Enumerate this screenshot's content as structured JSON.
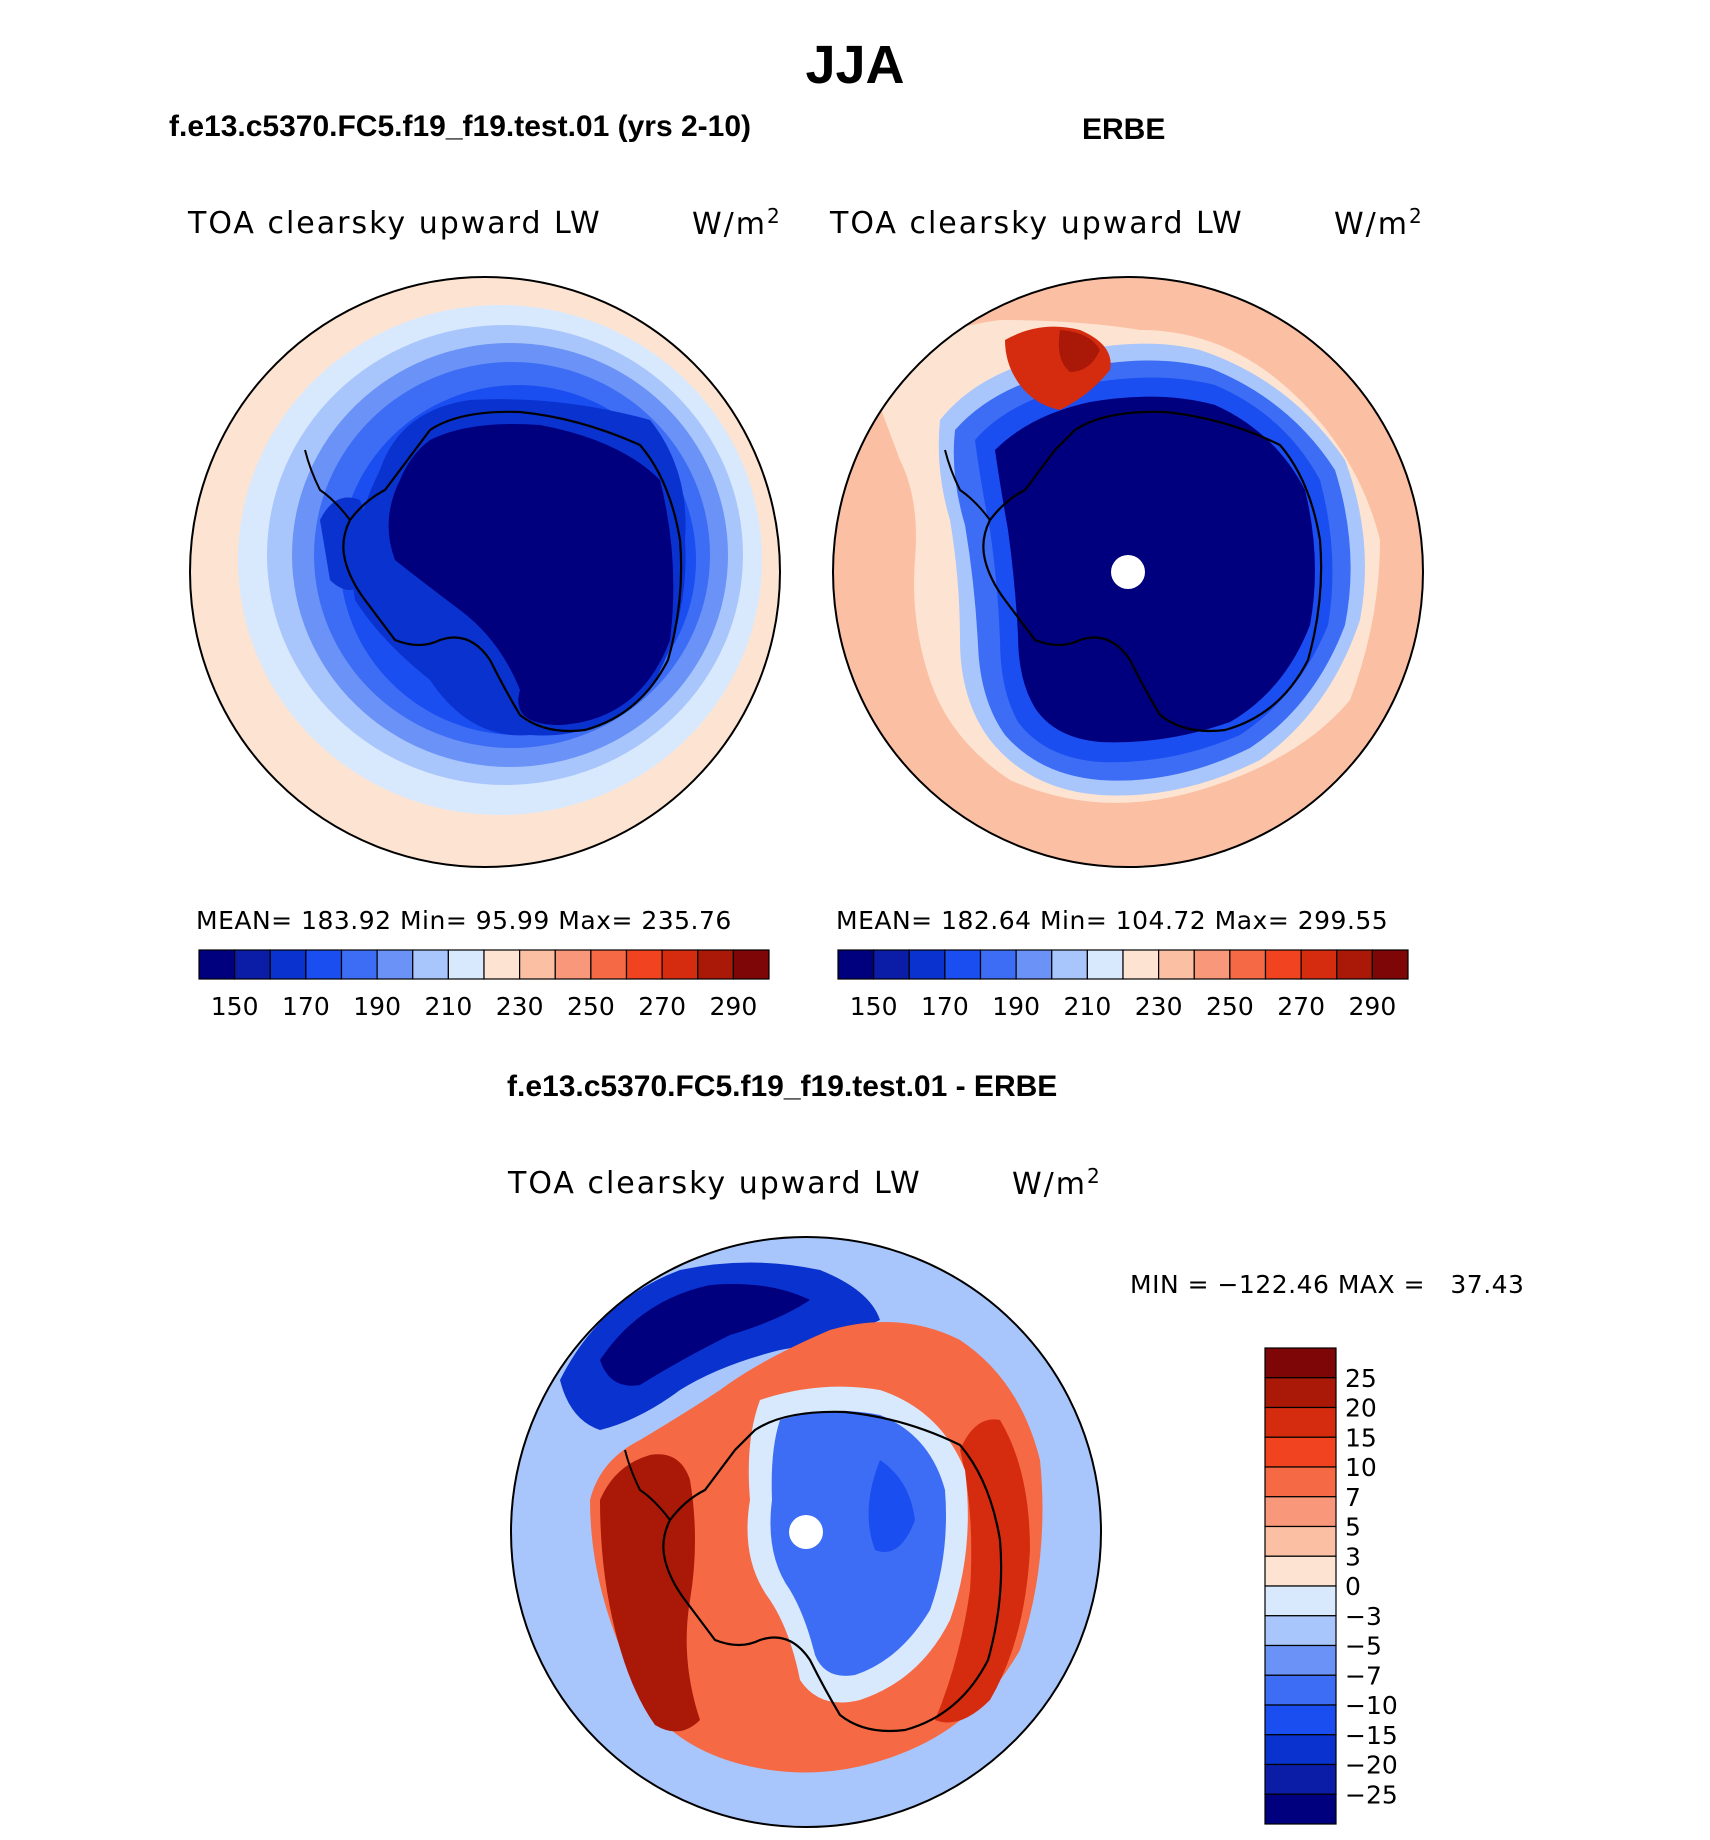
{
  "figure": {
    "season": "JJA",
    "model_title": "f.e13.c5370.FC5.f19_f19.test.01 (yrs 2-10)",
    "obs_title": "ERBE",
    "diff_title": "f.e13.c5370.FC5.f19_f19.test.01 - ERBE"
  },
  "panels": [
    {
      "id": "model",
      "label": "TOA clearsky upward LW",
      "units_base": "W/m",
      "units_exp": "2",
      "stats_text": "MEAN= 183.92   Min=   95.99   Max= 235.76"
    },
    {
      "id": "obs",
      "label": "TOA clearsky upward LW",
      "units_base": "W/m",
      "units_exp": "2",
      "stats_text": "MEAN= 182.64   Min= 104.72   Max= 299.55"
    },
    {
      "id": "diff",
      "label": "TOA clearsky upward LW",
      "units_base": "W/m",
      "units_exp": "2",
      "stats_text": "MIN = −122.46 MAX =   37.43"
    }
  ],
  "chart_data": [
    {
      "type": "heatmap",
      "title": "TOA clearsky upward LW",
      "subtitle": "f.e13.c5370.FC5.f19_f19.test.01 (yrs 2-10)",
      "units": "W/m2",
      "projection": "south polar stereographic",
      "mean": 183.92,
      "min": 95.99,
      "max": 235.76,
      "colorbar_levels": [
        150,
        160,
        170,
        180,
        190,
        200,
        210,
        220,
        230,
        240,
        250,
        260,
        270,
        280,
        290
      ],
      "colorbar_tick_labels": [
        "150",
        "170",
        "190",
        "210",
        "230",
        "250",
        "270",
        "290"
      ],
      "colorbar_colors": [
        "#00007f",
        "#0b1ca6",
        "#0a32cf",
        "#1a4ef0",
        "#3d6df5",
        "#6b92f6",
        "#a8c6fb",
        "#d8e8fd",
        "#fde4d2",
        "#fbc0a4",
        "#f8977a",
        "#f56a44",
        "#f1431f",
        "#d52c10",
        "#aa1808",
        "#7e0606"
      ]
    },
    {
      "type": "heatmap",
      "title": "TOA clearsky upward LW",
      "subtitle": "ERBE",
      "units": "W/m2",
      "projection": "south polar stereographic",
      "mean": 182.64,
      "min": 104.72,
      "max": 299.55,
      "colorbar_levels": [
        150,
        160,
        170,
        180,
        190,
        200,
        210,
        220,
        230,
        240,
        250,
        260,
        270,
        280,
        290
      ],
      "colorbar_tick_labels": [
        "150",
        "170",
        "190",
        "210",
        "230",
        "250",
        "270",
        "290"
      ],
      "colorbar_colors": [
        "#00007f",
        "#0b1ca6",
        "#0a32cf",
        "#1a4ef0",
        "#3d6df5",
        "#6b92f6",
        "#a8c6fb",
        "#d8e8fd",
        "#fde4d2",
        "#fbc0a4",
        "#f8977a",
        "#f56a44",
        "#f1431f",
        "#d52c10",
        "#aa1808",
        "#7e0606"
      ]
    },
    {
      "type": "heatmap",
      "title": "TOA clearsky upward LW",
      "subtitle": "f.e13.c5370.FC5.f19_f19.test.01 - ERBE",
      "units": "W/m2",
      "projection": "south polar stereographic",
      "min": -122.46,
      "max": 37.43,
      "colorbar_tick_labels": [
        "25",
        "20",
        "15",
        "10",
        "7",
        "5",
        "3",
        "0",
        "−3",
        "−5",
        "−7",
        "−10",
        "−15",
        "−20",
        "−25"
      ],
      "colorbar_colors": [
        "#7e0606",
        "#aa1808",
        "#d52c10",
        "#f1431f",
        "#f56a44",
        "#f8977a",
        "#fbc0a4",
        "#fde4d2",
        "#d8e8fd",
        "#a8c6fb",
        "#6b92f6",
        "#3d6df5",
        "#1a4ef0",
        "#0a32cf",
        "#0b1ca6",
        "#00007f"
      ]
    }
  ]
}
